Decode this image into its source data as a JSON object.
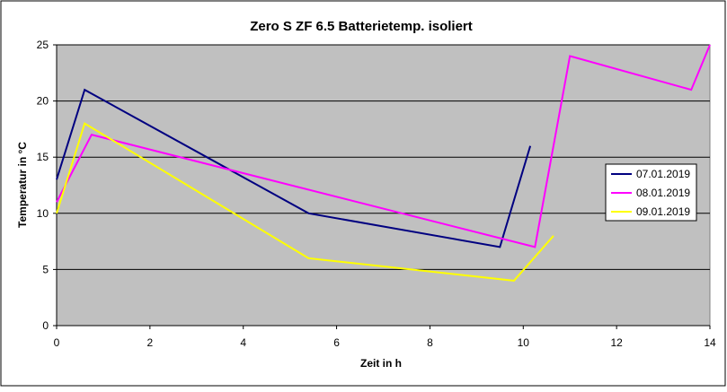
{
  "chart_data": {
    "type": "line",
    "title": "Zero S ZF 6.5 Batterietemp. isoliert",
    "xlabel": "Zeit in h",
    "ylabel": "Temperatur in °C",
    "xlim": [
      0,
      14
    ],
    "ylim": [
      0,
      25
    ],
    "x_ticks": [
      "0",
      "2",
      "4",
      "6",
      "8",
      "10",
      "12",
      "14"
    ],
    "y_ticks": [
      "0",
      "5",
      "10",
      "15",
      "20",
      "25"
    ],
    "grid": "horizontal",
    "legend_position": "right",
    "plot_background": "#c0c0c0",
    "series": [
      {
        "name": "07.01.2019",
        "color": "#000080",
        "points": [
          [
            0,
            13
          ],
          [
            0.6,
            21
          ],
          [
            5.4,
            10
          ],
          [
            9.5,
            7
          ],
          [
            10.15,
            16
          ]
        ]
      },
      {
        "name": "08.01.2019",
        "color": "#ff00ff",
        "points": [
          [
            0,
            11
          ],
          [
            0.75,
            17
          ],
          [
            10.25,
            7
          ],
          [
            11,
            24
          ],
          [
            13.6,
            21
          ],
          [
            14,
            25
          ]
        ]
      },
      {
        "name": "09.01.2019",
        "color": "#ffff00",
        "points": [
          [
            0,
            10
          ],
          [
            0.6,
            18
          ],
          [
            5.4,
            6
          ],
          [
            9.8,
            4
          ],
          [
            10.65,
            8
          ]
        ]
      }
    ]
  }
}
